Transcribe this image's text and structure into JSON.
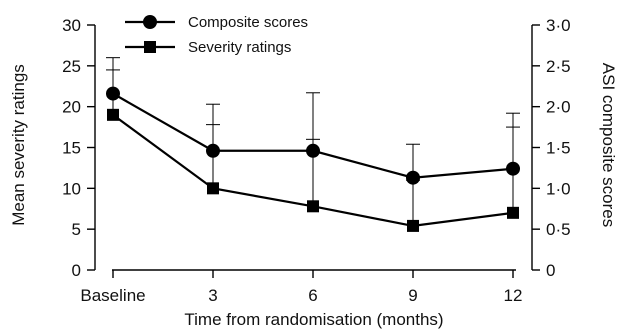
{
  "chart_data": {
    "type": "line",
    "x_categories": [
      "Baseline",
      "3",
      "6",
      "9",
      "12"
    ],
    "xlabel": "Time from randomisation (months)",
    "ylabel_left": "Mean severity ratings",
    "ylabel_right": "ASI composite scores",
    "ylim_left": [
      0,
      30
    ],
    "ylim_right": [
      0,
      3.0
    ],
    "yticks_left": [
      "0",
      "5",
      "10",
      "15",
      "20",
      "25",
      "30"
    ],
    "yticks_right": [
      "0",
      "0·5",
      "1·0",
      "1·5",
      "2·0",
      "2·5",
      "3·0"
    ],
    "legend_position": "top-left",
    "grid": false,
    "series": [
      {
        "name": "Composite scores",
        "marker": "circle",
        "axis": "right",
        "values": [
          2.16,
          1.46,
          1.46,
          1.13,
          1.24
        ],
        "error_upper": [
          2.6,
          2.03,
          2.17,
          1.54,
          1.92
        ]
      },
      {
        "name": "Severity ratings",
        "marker": "square",
        "axis": "left",
        "values": [
          19.0,
          10.0,
          7.8,
          5.4,
          7.0
        ],
        "error_upper": [
          24.5,
          17.8,
          16.0,
          11.0,
          17.5
        ]
      }
    ]
  }
}
